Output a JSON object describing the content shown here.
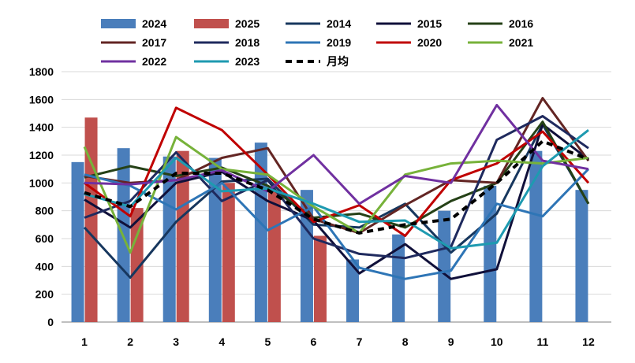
{
  "chart_data": {
    "type": "bar",
    "categories": [
      "1",
      "2",
      "3",
      "4",
      "5",
      "6",
      "7",
      "8",
      "9",
      "10",
      "11",
      "12"
    ],
    "ylim": [
      0,
      1800
    ],
    "yticks": [
      "0",
      "200",
      "400",
      "600",
      "800",
      "1000",
      "1200",
      "1400",
      "1600",
      "1800"
    ],
    "grid": true,
    "legend_position": "top",
    "bar_series": [
      {
        "name": "2024",
        "color": "#4a7ebb",
        "values": [
          1150,
          1250,
          1190,
          1180,
          1290,
          950,
          450,
          630,
          800,
          980,
          1230,
          950
        ]
      },
      {
        "name": "2025",
        "color": "#c0504d",
        "values": [
          1470,
          820,
          1230,
          1000,
          950,
          620,
          null,
          null,
          null,
          null,
          null,
          null
        ]
      }
    ],
    "line_series": [
      {
        "name": "2014",
        "color": "#17375e",
        "dash": false,
        "values": [
          680,
          320,
          720,
          1010,
          1030,
          700,
          680,
          850,
          500,
          780,
          1420,
          850
        ]
      },
      {
        "name": "2015",
        "color": "#10103a",
        "dash": false,
        "values": [
          880,
          680,
          1000,
          1080,
          870,
          730,
          350,
          560,
          310,
          380,
          1420,
          1170
        ]
      },
      {
        "name": "2016",
        "color": "#254117",
        "dash": false,
        "values": [
          1040,
          1120,
          1050,
          1110,
          980,
          750,
          780,
          680,
          870,
          1000,
          1440,
          850
        ]
      },
      {
        "name": "2017",
        "color": "#632523",
        "dash": false,
        "values": [
          1050,
          1000,
          1020,
          1180,
          1250,
          740,
          640,
          840,
          1020,
          1000,
          1610,
          1160
        ]
      },
      {
        "name": "2018",
        "color": "#1f2a5e",
        "dash": false,
        "values": [
          750,
          870,
          1220,
          870,
          1020,
          600,
          490,
          460,
          540,
          1310,
          1480,
          1250
        ]
      },
      {
        "name": "2019",
        "color": "#2e75b6",
        "dash": false,
        "values": [
          1060,
          980,
          810,
          1000,
          660,
          830,
          390,
          310,
          370,
          850,
          760,
          1100
        ]
      },
      {
        "name": "2020",
        "color": "#c00000",
        "dash": false,
        "values": [
          1000,
          760,
          1540,
          1380,
          1060,
          720,
          840,
          620,
          1020,
          1140,
          1370,
          1000
        ]
      },
      {
        "name": "2021",
        "color": "#77b23a",
        "dash": false,
        "values": [
          1260,
          500,
          1330,
          1100,
          1060,
          830,
          640,
          1060,
          1140,
          1160,
          1140,
          1180
        ]
      },
      {
        "name": "2022",
        "color": "#7030a0",
        "dash": false,
        "values": [
          1000,
          990,
          1020,
          1090,
          940,
          1200,
          850,
          1050,
          1000,
          1560,
          1160,
          1100
        ]
      },
      {
        "name": "2023",
        "color": "#1e9ab0",
        "dash": false,
        "values": [
          920,
          830,
          1180,
          940,
          960,
          850,
          720,
          730,
          530,
          570,
          1120,
          1380
        ]
      },
      {
        "name": "月均",
        "color": "#000000",
        "dash": true,
        "values": [
          930,
          830,
          1070,
          1070,
          950,
          740,
          640,
          700,
          740,
          1000,
          1300,
          1170
        ]
      }
    ]
  }
}
